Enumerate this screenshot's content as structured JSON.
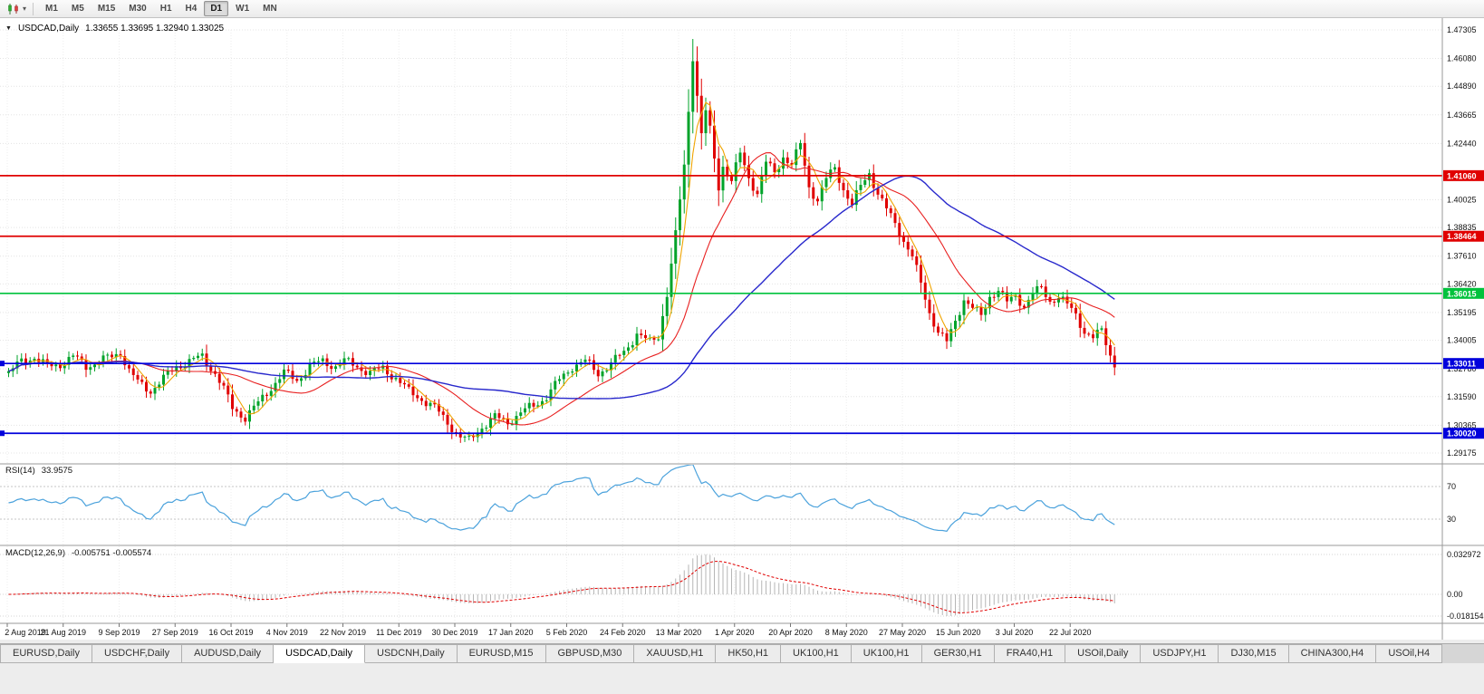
{
  "icons": {
    "chart_menu_glyph": "▼",
    "timeframe_caret_glyph": "▾"
  },
  "toolbar": {
    "timeframes": [
      "M1",
      "M5",
      "M15",
      "M30",
      "H1",
      "H4",
      "D1",
      "W1",
      "MN"
    ],
    "active": "D1"
  },
  "chart_header": {
    "symbol": "USDCAD,Daily",
    "ohlc": "1.33655 1.33695 1.32940 1.33025",
    "open": "1.33655",
    "high": "1.33695",
    "low": "1.32940",
    "close": "1.33025"
  },
  "chart_data": {
    "type": "candlestick+indicators",
    "symbol": "USDCAD",
    "timeframe": "Daily",
    "price_axis_range": {
      "top": 1.47305,
      "bottom": 1.29175
    },
    "price_axis_labels": [
      "1.47305",
      "1.46080",
      "1.44890",
      "1.43665",
      "1.42440",
      "1.40025",
      "1.38835",
      "1.37610",
      "1.36420",
      "1.35195",
      "1.34005",
      "1.32780",
      "1.31590",
      "1.30365",
      "1.29175"
    ],
    "hlines": [
      {
        "label": "1.41060",
        "value": 1.4106,
        "color": "#e00000",
        "edge_marker": false
      },
      {
        "label": "1.38464",
        "value": 1.38464,
        "color": "#e00000",
        "edge_marker": false
      },
      {
        "label": "1.36015",
        "value": 1.36015,
        "color": "#00c23c",
        "edge_marker": false
      },
      {
        "label": "1.33011",
        "value": 1.33011,
        "color": "#0000dc",
        "edge_marker": true
      },
      {
        "label": "1.30020",
        "value": 1.3002,
        "color": "#0000dc",
        "edge_marker": true
      }
    ],
    "date_labels": [
      "2 Aug 2019",
      "21 Aug 2019",
      "9 Sep 2019",
      "27 Sep 2019",
      "16 Oct 2019",
      "4 Nov 2019",
      "22 Nov 2019",
      "11 Dec 2019",
      "30 Dec 2019",
      "17 Jan 2020",
      "5 Feb 2020",
      "24 Feb 2020",
      "13 Mar 2020",
      "1 Apr 2020",
      "20 Apr 2020",
      "8 May 2020",
      "27 May 2020",
      "15 Jun 2020",
      "3 Jul 2020",
      "22 Jul 2020"
    ],
    "bars_per_label": 13,
    "bar_count": 258,
    "candle_colors": {
      "up": "#00a32a",
      "down": "#e00000"
    },
    "moving_averages": [
      {
        "type": "sma",
        "period": 5,
        "color": "#f0a400"
      },
      {
        "type": "sma",
        "period": 20,
        "color": "#e82020"
      },
      {
        "type": "sma",
        "period": 55,
        "color": "#2828cc"
      }
    ],
    "close_path_anchors": [
      [
        0,
        1.326
      ],
      [
        3,
        1.331
      ],
      [
        6,
        1.333
      ],
      [
        9,
        1.3285
      ],
      [
        12,
        1.33
      ],
      [
        15,
        1.333
      ],
      [
        18,
        1.329
      ],
      [
        21,
        1.331
      ],
      [
        24,
        1.333
      ],
      [
        26,
        1.335
      ],
      [
        28,
        1.327
      ],
      [
        30,
        1.322
      ],
      [
        33,
        1.3185
      ],
      [
        36,
        1.3235
      ],
      [
        39,
        1.329
      ],
      [
        42,
        1.331
      ],
      [
        45,
        1.333
      ],
      [
        48,
        1.326
      ],
      [
        50,
        1.319
      ],
      [
        52,
        1.311
      ],
      [
        55,
        1.307
      ],
      [
        58,
        1.313
      ],
      [
        61,
        1.32
      ],
      [
        64,
        1.326
      ],
      [
        67,
        1.323
      ],
      [
        70,
        1.329
      ],
      [
        73,
        1.331
      ],
      [
        76,
        1.329
      ],
      [
        78,
        1.331
      ],
      [
        81,
        1.329
      ],
      [
        84,
        1.326
      ],
      [
        87,
        1.328
      ],
      [
        90,
        1.324
      ],
      [
        93,
        1.318
      ],
      [
        96,
        1.315
      ],
      [
        99,
        1.311
      ],
      [
        102,
        1.305
      ],
      [
        105,
        1.2985
      ],
      [
        107,
        1.297
      ],
      [
        110,
        1.303
      ],
      [
        113,
        1.307
      ],
      [
        116,
        1.305
      ],
      [
        119,
        1.309
      ],
      [
        122,
        1.312
      ],
      [
        125,
        1.316
      ],
      [
        128,
        1.323
      ],
      [
        131,
        1.329
      ],
      [
        134,
        1.331
      ],
      [
        137,
        1.326
      ],
      [
        140,
        1.33
      ],
      [
        143,
        1.335
      ],
      [
        146,
        1.343
      ],
      [
        149,
        1.339
      ],
      [
        151,
        1.342
      ],
      [
        153,
        1.36
      ],
      [
        155,
        1.385
      ],
      [
        157,
        1.415
      ],
      [
        159,
        1.462
      ],
      [
        160,
        1.445
      ],
      [
        161,
        1.428
      ],
      [
        162,
        1.438
      ],
      [
        163,
        1.43
      ],
      [
        164,
        1.418
      ],
      [
        165,
        1.406
      ],
      [
        166,
        1.415
      ],
      [
        168,
        1.408
      ],
      [
        170,
        1.42
      ],
      [
        172,
        1.41
      ],
      [
        174,
        1.403
      ],
      [
        176,
        1.416
      ],
      [
        178,
        1.412
      ],
      [
        180,
        1.419
      ],
      [
        182,
        1.415
      ],
      [
        184,
        1.424
      ],
      [
        186,
        1.406
      ],
      [
        188,
        1.4
      ],
      [
        190,
        1.409
      ],
      [
        192,
        1.414
      ],
      [
        194,
        1.405
      ],
      [
        196,
        1.398
      ],
      [
        198,
        1.406
      ],
      [
        200,
        1.412
      ],
      [
        202,
        1.403
      ],
      [
        204,
        1.396
      ],
      [
        206,
        1.39
      ],
      [
        208,
        1.383
      ],
      [
        210,
        1.376
      ],
      [
        212,
        1.364
      ],
      [
        214,
        1.352
      ],
      [
        216,
        1.344
      ],
      [
        218,
        1.339
      ],
      [
        220,
        1.348
      ],
      [
        222,
        1.358
      ],
      [
        224,
        1.354
      ],
      [
        226,
        1.35
      ],
      [
        228,
        1.359
      ],
      [
        230,
        1.362
      ],
      [
        232,
        1.356
      ],
      [
        234,
        1.359
      ],
      [
        236,
        1.355
      ],
      [
        238,
        1.36
      ],
      [
        240,
        1.362
      ],
      [
        242,
        1.357
      ],
      [
        244,
        1.359
      ],
      [
        246,
        1.355
      ],
      [
        248,
        1.351
      ],
      [
        250,
        1.344
      ],
      [
        252,
        1.341
      ],
      [
        254,
        1.344
      ],
      [
        255,
        1.339
      ],
      [
        256,
        1.334
      ],
      [
        257,
        1.33
      ]
    ],
    "noise": {
      "amp1": 0.0015,
      "f1": 0.9,
      "amp2": 0.0009,
      "f2": 2.23,
      "wick": 0.0017
    },
    "rsi": {
      "name": "RSI(14)",
      "value": "33.9575",
      "period": 14,
      "levels": [
        "70",
        "30"
      ],
      "color": "#4ba2dc"
    },
    "macd": {
      "name": "MACD(12,26,9)",
      "values": "-0.005751 -0.005574",
      "fast": 12,
      "slow": 26,
      "signal": 9,
      "axis": [
        "0.032972",
        "0.00",
        "-0.018154"
      ],
      "hist_color": "#b6b6b6",
      "signal_color": "#e00000"
    }
  },
  "tabs": {
    "items": [
      {
        "label": "EURUSD,Daily",
        "active": false
      },
      {
        "label": "USDCHF,Daily",
        "active": false
      },
      {
        "label": "AUDUSD,Daily",
        "active": false
      },
      {
        "label": "USDCAD,Daily",
        "active": true
      },
      {
        "label": "USDCNH,Daily",
        "active": false
      },
      {
        "label": "EURUSD,M15",
        "active": false
      },
      {
        "label": "GBPUSD,M30",
        "active": false
      },
      {
        "label": "XAUUSD,H1",
        "active": false
      },
      {
        "label": "HK50,H1",
        "active": false
      },
      {
        "label": "UK100,H1",
        "active": false
      },
      {
        "label": "UK100,H1",
        "active": false
      },
      {
        "label": "GER30,H1",
        "active": false
      },
      {
        "label": "FRA40,H1",
        "active": false
      },
      {
        "label": "USOil,Daily",
        "active": false
      },
      {
        "label": "USDJPY,H1",
        "active": false
      },
      {
        "label": "DJ30,M15",
        "active": false
      },
      {
        "label": "CHINA300,H4",
        "active": false
      },
      {
        "label": "USOil,H4",
        "active": false
      }
    ]
  }
}
